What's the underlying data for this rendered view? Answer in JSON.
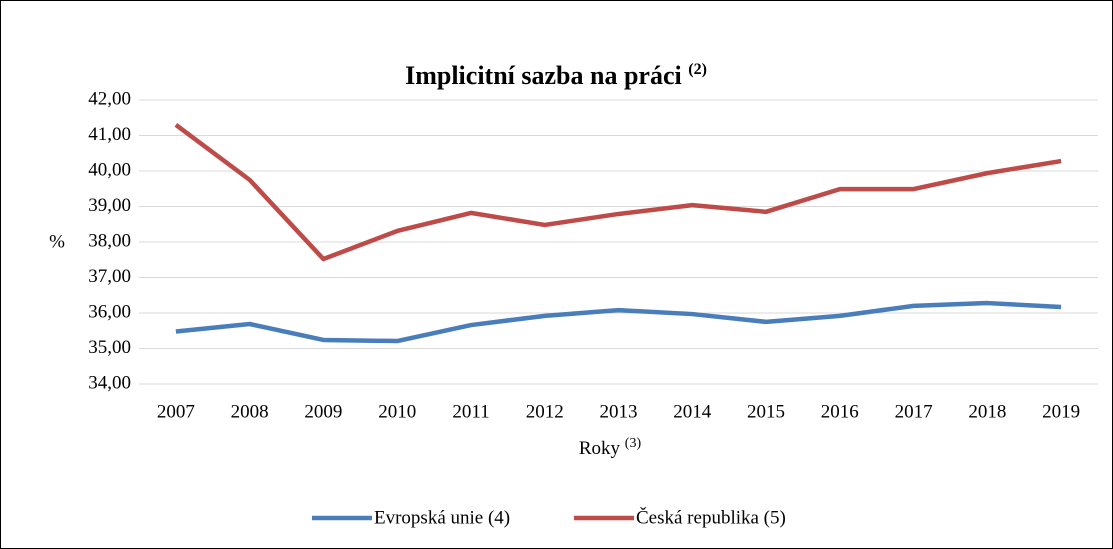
{
  "chart_data": {
    "type": "line",
    "title": "Implicitní sazba na práci",
    "title_note": "(2)",
    "x_label": "Roky",
    "x_label_note": "(3)",
    "y_label": "%",
    "categories": [
      "2007",
      "2008",
      "2009",
      "2010",
      "2011",
      "2012",
      "2013",
      "2014",
      "2015",
      "2016",
      "2017",
      "2018",
      "2019"
    ],
    "series": [
      {
        "name": "Evropská unie (4)",
        "color": "#4a7ebb",
        "values": [
          35.48,
          35.69,
          35.24,
          35.21,
          35.66,
          35.92,
          36.08,
          35.97,
          35.75,
          35.92,
          36.2,
          36.28,
          36.17
        ]
      },
      {
        "name": "Česká republika (5)",
        "color": "#be4b48",
        "values": [
          41.3,
          39.75,
          37.52,
          38.31,
          38.82,
          38.48,
          38.79,
          39.04,
          38.85,
          39.49,
          39.49,
          39.94,
          40.28
        ]
      }
    ],
    "ylim": [
      34,
      42
    ],
    "yticks": [
      {
        "value": 34,
        "label": "34,00"
      },
      {
        "value": 35,
        "label": "35,00"
      },
      {
        "value": 36,
        "label": "36,00"
      },
      {
        "value": 37,
        "label": "37,00"
      },
      {
        "value": 38,
        "label": "38,00"
      },
      {
        "value": 39,
        "label": "39,00"
      },
      {
        "value": 40,
        "label": "40,00"
      },
      {
        "value": 41,
        "label": "41,00"
      },
      {
        "value": 42,
        "label": "42,00"
      }
    ],
    "grid": true,
    "legend": "bottom"
  }
}
